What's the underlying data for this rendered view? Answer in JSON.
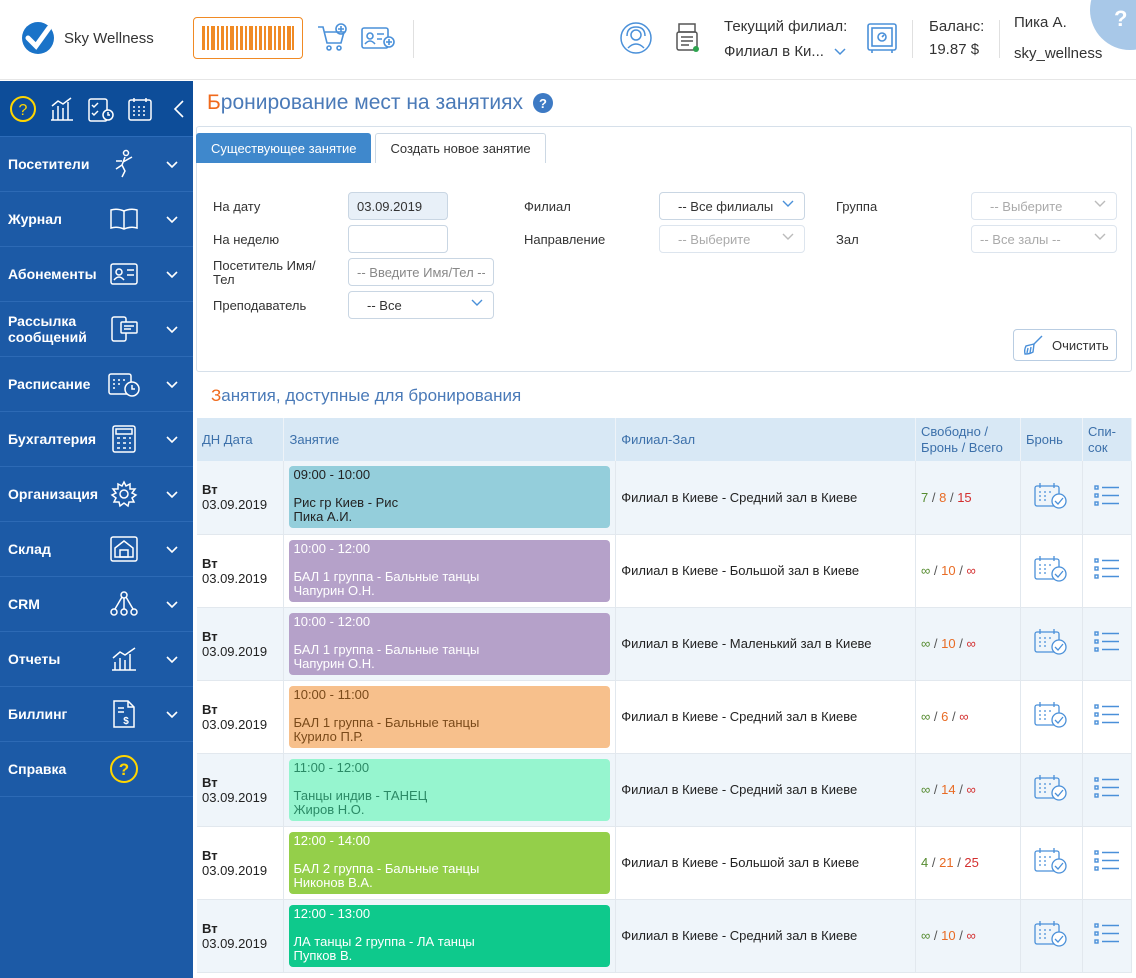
{
  "header": {
    "app_name": "Sky Wellness",
    "branch_label": "Текущий филиал:",
    "branch_value": "Филиал в Ки...",
    "balance_label": "Баланс:",
    "balance_value": "19.87 $",
    "user_name": "Пика А.",
    "user_login": "sky_wellness",
    "help_symbol": "?"
  },
  "sidebar": {
    "items": [
      {
        "label": "Посетители",
        "icon": "person-dance-icon"
      },
      {
        "label": "Журнал",
        "icon": "book-icon"
      },
      {
        "label": "Абонементы",
        "icon": "id-card-icon"
      },
      {
        "label": "Рассылка сообщений",
        "icon": "message-device-icon"
      },
      {
        "label": "Расписание",
        "icon": "calendar-clock-icon"
      },
      {
        "label": "Бухгалтерия",
        "icon": "calculator-icon"
      },
      {
        "label": "Организация",
        "icon": "gear-icon"
      },
      {
        "label": "Склад",
        "icon": "warehouse-icon"
      },
      {
        "label": "CRM",
        "icon": "network-icon"
      },
      {
        "label": "Отчеты",
        "icon": "chart-icon"
      },
      {
        "label": "Биллинг",
        "icon": "invoice-icon"
      },
      {
        "label": "Справка",
        "icon": "help-icon"
      }
    ]
  },
  "page": {
    "title_first": "Б",
    "title_rest": "ронирование мест на занятиях",
    "help": "?",
    "tabs": [
      "Существующее занятие",
      "Создать новое занятие"
    ],
    "section_first": "З",
    "section_rest": "анятия, доступные для бронирования",
    "clear_label": "Очистить"
  },
  "filters": {
    "date_label": "На дату",
    "date_value": "03.09.2019",
    "week_label": "На неделю",
    "week_value": "",
    "visitor_label": "Посетитель Имя/Тел",
    "visitor_placeholder": "-- Введите Имя/Тел --",
    "teacher_label": "Преподаватель",
    "teacher_value": "-- Все",
    "branch_label": "Филиал",
    "branch_value": "-- Все филиалы",
    "direction_label": "Направление",
    "direction_value": "-- Выберите",
    "group_label": "Группа",
    "group_value": "-- Выберите",
    "hall_label": "Зал",
    "hall_value": "-- Все залы --"
  },
  "table": {
    "headers": [
      "ДН Дата",
      "Занятие",
      "Филиал-Зал",
      "Свободно / Бронь / Всего",
      "Бронь",
      "Спи-сок"
    ],
    "rows": [
      {
        "dn": "Вт",
        "date": "03.09.2019",
        "time": "09:00 - 10:00",
        "name": "Рис гр Киев - Рис",
        "teacher": "Пика А.И.",
        "color": "#94cedb",
        "text_color": "#222222",
        "hall": "Филиал в Киеве - Средний зал в Киеве",
        "free": "7",
        "booked": "8",
        "total": "15"
      },
      {
        "dn": "Вт",
        "date": "03.09.2019",
        "time": "10:00 - 12:00",
        "name": "БАЛ 1 группа - Бальные танцы",
        "teacher": "Чапурин О.Н.",
        "color": "#b5a1c9",
        "text_color": "#ffffff",
        "hall": "Филиал в Киеве - Большой зал в Киеве",
        "free": "∞",
        "booked": "10",
        "total": "∞"
      },
      {
        "dn": "Вт",
        "date": "03.09.2019",
        "time": "10:00 - 12:00",
        "name": "БАЛ 1 группа - Бальные танцы",
        "teacher": "Чапурин О.Н.",
        "color": "#b5a1c9",
        "text_color": "#ffffff",
        "hall": "Филиал в Киеве - Маленький зал в Киеве",
        "free": "∞",
        "booked": "10",
        "total": "∞"
      },
      {
        "dn": "Вт",
        "date": "03.09.2019",
        "time": "10:00 - 11:00",
        "name": "БАЛ 1 группа - Бальные танцы",
        "teacher": "Курило П.Р.",
        "color": "#f7c08c",
        "text_color": "#7a4a1a",
        "hall": "Филиал в Киеве - Средний зал в Киеве",
        "free": "∞",
        "booked": "6",
        "total": "∞"
      },
      {
        "dn": "Вт",
        "date": "03.09.2019",
        "time": "11:00 - 12:00",
        "name": "Танцы индив - ТАНЕЦ",
        "teacher": "Жиров Н.О.",
        "color": "#96f5cf",
        "text_color": "#2b8a66",
        "hall": "Филиал в Киеве - Средний зал в Киеве",
        "free": "∞",
        "booked": "14",
        "total": "∞"
      },
      {
        "dn": "Вт",
        "date": "03.09.2019",
        "time": "12:00 - 14:00",
        "name": "БАЛ 2 группа - Бальные танцы",
        "teacher": "Никонов В.А.",
        "color": "#94cf4a",
        "text_color": "#ffffff",
        "hall": "Филиал в Киеве - Большой зал в Киеве",
        "free": "4",
        "booked": "21",
        "total": "25"
      },
      {
        "dn": "Вт",
        "date": "03.09.2019",
        "time": "12:00 - 13:00",
        "name": "ЛА танцы 2 группа - ЛА танцы",
        "teacher": "Пупков В.",
        "color": "#0ec98c",
        "text_color": "#ffffff",
        "hall": "Филиал в Киеве - Средний зал в Киеве",
        "free": "∞",
        "booked": "10",
        "total": "∞"
      }
    ]
  }
}
